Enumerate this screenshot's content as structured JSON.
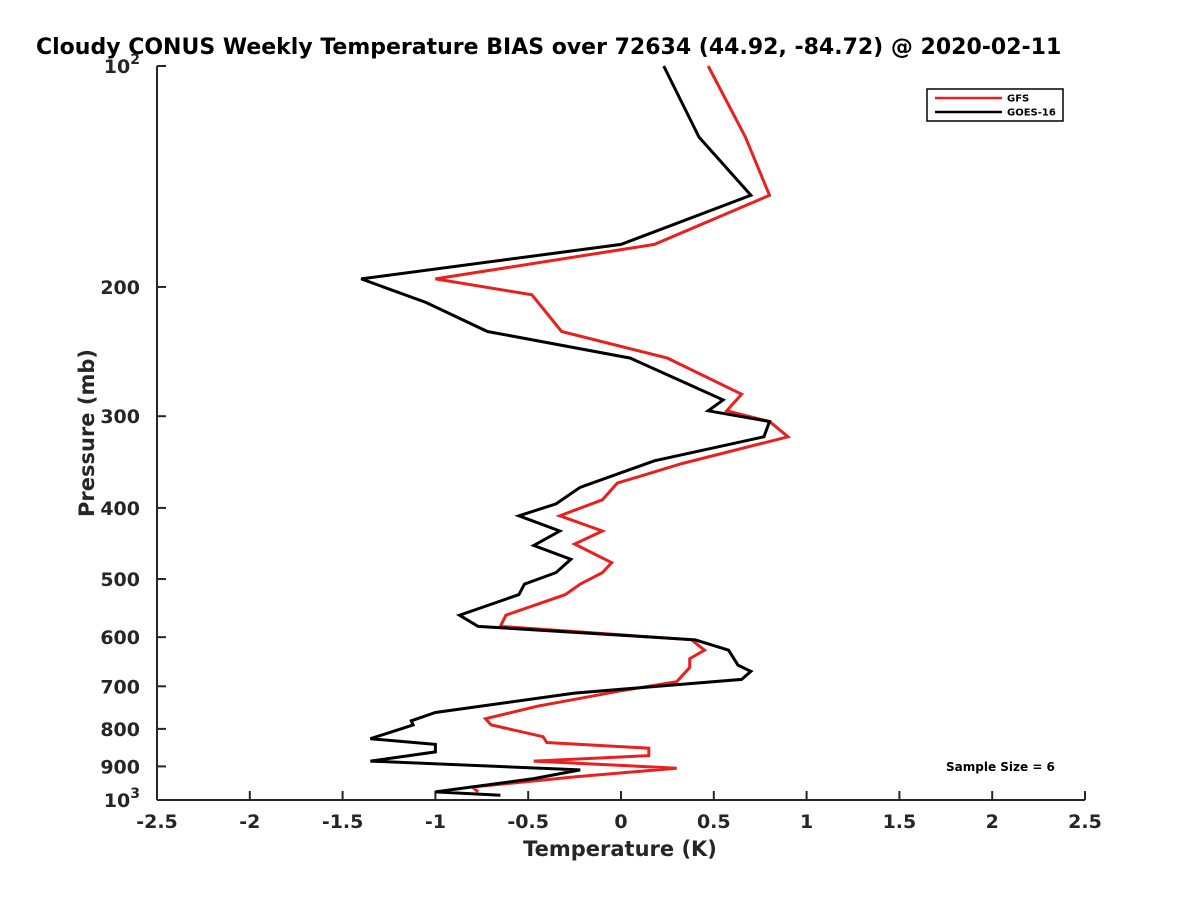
{
  "chart_data": {
    "type": "line",
    "title": "Cloudy CONUS Weekly Temperature BIAS over 72634 (44.92, -84.72) @ 2020-02-11",
    "xlabel": "Temperature (K)",
    "ylabel": "Pressure (mb)",
    "xlim": [
      -2.5,
      2.5
    ],
    "ylim": [
      100,
      1000
    ],
    "yscale": "log",
    "y_reversed": true,
    "grid": false,
    "legend_position": "top-right",
    "x_ticks": [
      "-2.5",
      "-2",
      "-1.5",
      "-1",
      "-0.5",
      "0",
      "0.5",
      "1",
      "1.5",
      "2",
      "2.5"
    ],
    "y_ticks": [
      {
        "value": 100,
        "base": "10",
        "exp": "2"
      },
      {
        "value": 200,
        "label": "200"
      },
      {
        "value": 300,
        "label": "300"
      },
      {
        "value": 400,
        "label": "400"
      },
      {
        "value": 500,
        "label": "500"
      },
      {
        "value": 600,
        "label": "600"
      },
      {
        "value": 700,
        "label": "700"
      },
      {
        "value": 800,
        "label": "800"
      },
      {
        "value": 900,
        "label": "900"
      },
      {
        "value": 1000,
        "base": "10",
        "exp": "3"
      }
    ],
    "series": [
      {
        "name": "GFS",
        "color": "#e8201e",
        "points": [
          [
            0.47,
            100
          ],
          [
            0.67,
            125
          ],
          [
            0.8,
            150
          ],
          [
            0.18,
            175
          ],
          [
            -1.0,
            195
          ],
          [
            -0.48,
            205
          ],
          [
            -0.32,
            230
          ],
          [
            0.25,
            250
          ],
          [
            0.65,
            280
          ],
          [
            0.57,
            295
          ],
          [
            0.8,
            305
          ],
          [
            0.9,
            320
          ],
          [
            0.33,
            348
          ],
          [
            -0.02,
            370
          ],
          [
            -0.1,
            390
          ],
          [
            -0.33,
            410
          ],
          [
            -0.1,
            430
          ],
          [
            -0.25,
            448
          ],
          [
            -0.05,
            475
          ],
          [
            -0.1,
            490
          ],
          [
            -0.22,
            508
          ],
          [
            -0.3,
            525
          ],
          [
            -0.62,
            560
          ],
          [
            -0.65,
            580
          ],
          [
            0.38,
            605
          ],
          [
            0.45,
            625
          ],
          [
            0.37,
            642
          ],
          [
            0.37,
            660
          ],
          [
            0.3,
            690
          ],
          [
            0.0,
            710
          ],
          [
            -0.45,
            745
          ],
          [
            -0.73,
            775
          ],
          [
            -0.7,
            790
          ],
          [
            -0.42,
            820
          ],
          [
            -0.4,
            835
          ],
          [
            0.15,
            850
          ],
          [
            0.15,
            870
          ],
          [
            -0.47,
            885
          ],
          [
            0.3,
            905
          ],
          [
            -0.25,
            930
          ],
          [
            -0.8,
            960
          ],
          [
            -0.77,
            975
          ]
        ]
      },
      {
        "name": "GOES-16",
        "color": "#000000",
        "points": [
          [
            0.23,
            100
          ],
          [
            0.42,
            125
          ],
          [
            0.7,
            150
          ],
          [
            0.0,
            175
          ],
          [
            -1.4,
            195
          ],
          [
            -1.05,
            210
          ],
          [
            -0.72,
            230
          ],
          [
            0.05,
            250
          ],
          [
            0.55,
            285
          ],
          [
            0.47,
            295
          ],
          [
            0.8,
            305
          ],
          [
            0.77,
            320
          ],
          [
            0.18,
            345
          ],
          [
            -0.22,
            375
          ],
          [
            -0.35,
            395
          ],
          [
            -0.55,
            410
          ],
          [
            -0.33,
            430
          ],
          [
            -0.47,
            450
          ],
          [
            -0.27,
            470
          ],
          [
            -0.35,
            490
          ],
          [
            -0.52,
            508
          ],
          [
            -0.55,
            525
          ],
          [
            -0.87,
            560
          ],
          [
            -0.77,
            580
          ],
          [
            0.4,
            605
          ],
          [
            0.58,
            625
          ],
          [
            0.63,
            655
          ],
          [
            0.7,
            668
          ],
          [
            0.65,
            685
          ],
          [
            -0.25,
            715
          ],
          [
            -1.0,
            760
          ],
          [
            -1.13,
            780
          ],
          [
            -1.12,
            790
          ],
          [
            -1.35,
            825
          ],
          [
            -1.0,
            840
          ],
          [
            -1.0,
            860
          ],
          [
            -1.35,
            885
          ],
          [
            -0.22,
            910
          ],
          [
            -0.47,
            935
          ],
          [
            -1.0,
            975
          ],
          [
            -0.65,
            985
          ]
        ]
      }
    ],
    "annotation": "Sample Size = 6"
  }
}
